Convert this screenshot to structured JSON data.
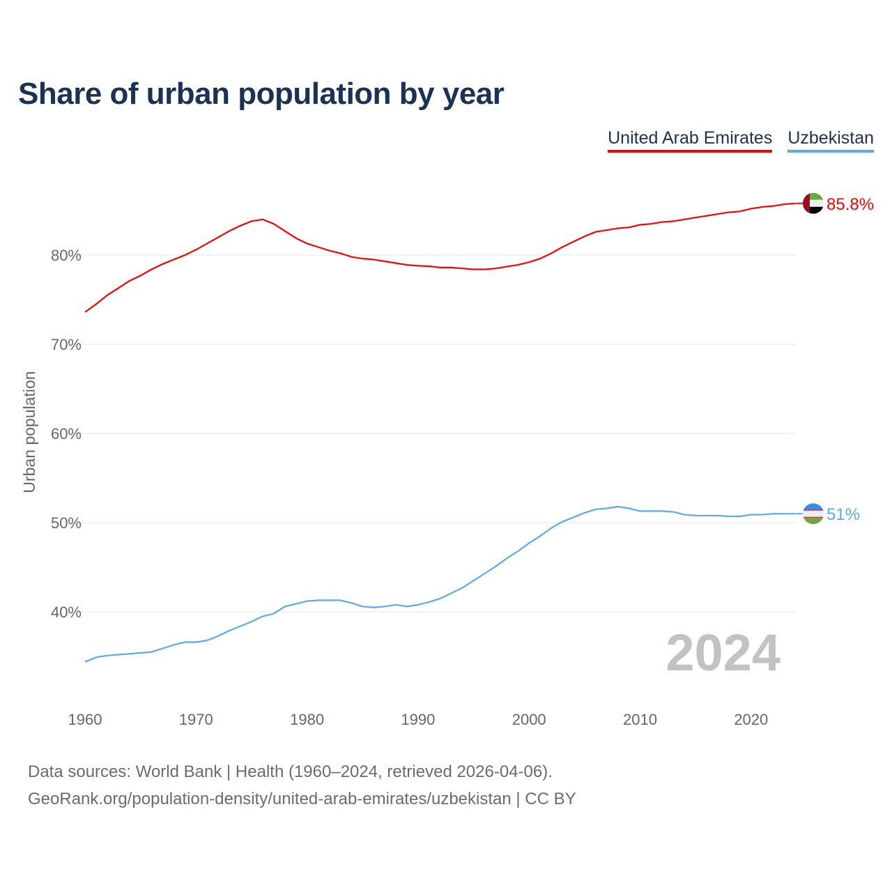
{
  "title": "Share of urban population by year",
  "legend": [
    {
      "label": "United Arab Emirates",
      "color": "#ff0000"
    },
    {
      "label": "Uzbekistan",
      "color": "#5ea8ee"
    }
  ],
  "footer": {
    "line1": "Data sources: World Bank | Health (1960–2024, retrieved 2026-04-06).",
    "line2": "GeoRank.org/population-density/united-arab-emirates/uzbekistan | CC BY"
  },
  "chart_data": {
    "type": "line",
    "title": "Share of urban population by year",
    "xlabel": "",
    "ylabel": "Urban population",
    "xlim": [
      1960,
      2024
    ],
    "ylim": [
      30,
      88
    ],
    "x_ticks": [
      "1960",
      "1970",
      "1980",
      "1990",
      "2000",
      "2010",
      "2020"
    ],
    "y_ticks": [
      "40%",
      "50%",
      "60%",
      "70%",
      "80%"
    ],
    "grid": true,
    "legend_position": "top-right",
    "watermark_year": "2024",
    "x": [
      1960,
      1961,
      1962,
      1963,
      1964,
      1965,
      1966,
      1967,
      1968,
      1969,
      1970,
      1971,
      1972,
      1973,
      1974,
      1975,
      1976,
      1977,
      1978,
      1979,
      1980,
      1981,
      1982,
      1983,
      1984,
      1985,
      1986,
      1987,
      1988,
      1989,
      1990,
      1991,
      1992,
      1993,
      1994,
      1995,
      1996,
      1997,
      1998,
      1999,
      2000,
      2001,
      2002,
      2003,
      2004,
      2005,
      2006,
      2007,
      2008,
      2009,
      2010,
      2011,
      2012,
      2013,
      2014,
      2015,
      2016,
      2017,
      2018,
      2019,
      2020,
      2021,
      2022,
      2023,
      2024
    ],
    "series": [
      {
        "name": "United Arab Emirates",
        "color": "#ff0000",
        "end_label": "85.8%",
        "values": [
          73.6,
          74.5,
          75.5,
          76.3,
          77.1,
          77.7,
          78.4,
          79.0,
          79.5,
          80.0,
          80.6,
          81.3,
          82.0,
          82.7,
          83.3,
          83.8,
          84.0,
          83.5,
          82.7,
          81.9,
          81.3,
          80.9,
          80.5,
          80.2,
          79.8,
          79.6,
          79.5,
          79.3,
          79.1,
          78.9,
          78.8,
          78.75,
          78.6,
          78.6,
          78.5,
          78.4,
          78.4,
          78.5,
          78.7,
          78.9,
          79.2,
          79.6,
          80.2,
          80.9,
          81.5,
          82.1,
          82.6,
          82.8,
          83.0,
          83.1,
          83.4,
          83.5,
          83.7,
          83.8,
          84.0,
          84.2,
          84.4,
          84.6,
          84.8,
          84.9,
          85.2,
          85.4,
          85.5,
          85.7,
          85.8
        ]
      },
      {
        "name": "Uzbekistan",
        "color": "#5ea8ee",
        "end_label": "51%",
        "values": [
          34.4,
          34.9,
          35.1,
          35.2,
          35.3,
          35.4,
          35.5,
          35.9,
          36.3,
          36.6,
          36.6,
          36.8,
          37.3,
          37.9,
          38.4,
          38.9,
          39.5,
          39.8,
          40.6,
          40.9,
          41.2,
          41.3,
          41.3,
          41.3,
          41.0,
          40.6,
          40.5,
          40.6,
          40.8,
          40.6,
          40.8,
          41.1,
          41.5,
          42.1,
          42.7,
          43.5,
          44.3,
          45.1,
          46.0,
          46.8,
          47.7,
          48.5,
          49.4,
          50.1,
          50.6,
          51.1,
          51.5,
          51.6,
          51.8,
          51.6,
          51.3,
          51.3,
          51.3,
          51.2,
          50.9,
          50.8,
          50.8,
          50.8,
          50.7,
          50.7,
          50.9,
          50.9,
          51.0,
          51.0,
          51.0
        ]
      }
    ]
  }
}
